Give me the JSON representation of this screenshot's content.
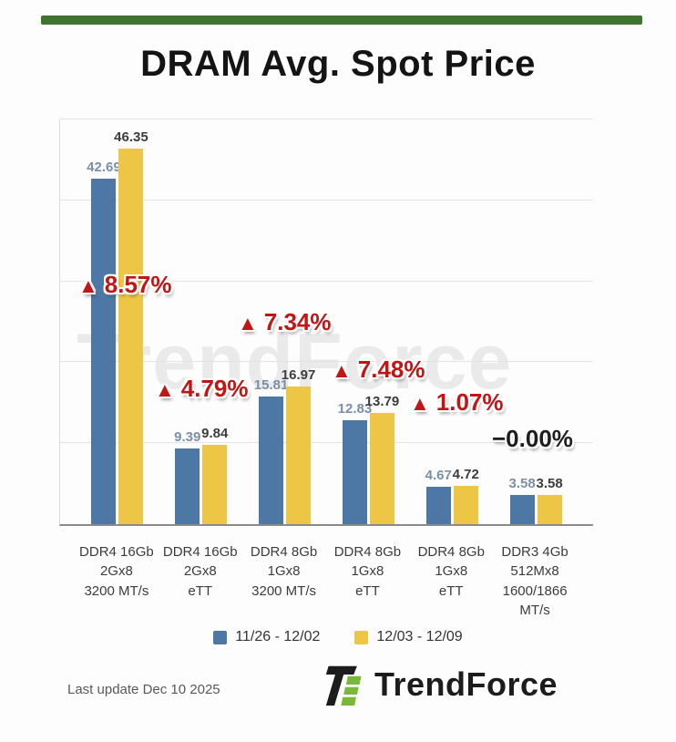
{
  "page": {
    "title": "DRAM Avg. Spot Price",
    "last_update": "Last update Dec 10 2025",
    "brand": "TrendForce",
    "watermark": "TrendForce"
  },
  "chart_data": {
    "type": "bar",
    "title": "DRAM Avg. Spot Price",
    "categories": [
      [
        "DDR4 16Gb",
        "2Gx8",
        "3200 MT/s"
      ],
      [
        "DDR4 16Gb",
        "2Gx8",
        "eTT"
      ],
      [
        "DDR4 8Gb",
        "1Gx8",
        "3200 MT/s"
      ],
      [
        "DDR4 8Gb",
        "1Gx8",
        "eTT"
      ],
      [
        "DDR4 8Gb",
        "1Gx8",
        "eTT"
      ],
      [
        "DDR3 4Gb",
        "512Mx8",
        "1600/1866",
        "MT/s"
      ]
    ],
    "series": [
      {
        "name": "11/26 - 12/02",
        "color": "#4d77a5",
        "label_color": "#7b8fa8",
        "values": [
          42.69,
          9.39,
          15.81,
          12.83,
          4.67,
          3.58
        ]
      },
      {
        "name": "12/03 - 12/09",
        "color": "#ecc644",
        "label_color": "#3d3d3d",
        "values": [
          46.35,
          9.84,
          16.97,
          13.79,
          4.72,
          3.58
        ]
      }
    ],
    "changes": [
      {
        "text": "8.57%",
        "direction": "up"
      },
      {
        "text": "4.79%",
        "direction": "up"
      },
      {
        "text": "7.34%",
        "direction": "up"
      },
      {
        "text": "7.48%",
        "direction": "up"
      },
      {
        "text": "1.07%",
        "direction": "up"
      },
      {
        "text": "0.00%",
        "direction": "flat",
        "prefix": "−"
      }
    ],
    "up_marker": "▲",
    "ylim": [
      0,
      50
    ],
    "grid_step": 10,
    "grid": true,
    "legend_position": "bottom",
    "xlabel": "",
    "ylabel": ""
  },
  "colors": {
    "accent_green": "#3e7430",
    "bar_blue": "#4d77a5",
    "bar_yellow": "#ecc644",
    "change_up_red": "#c01616",
    "change_flat_black": "#1e1e1e",
    "axis_line": "#8a8a8a"
  }
}
